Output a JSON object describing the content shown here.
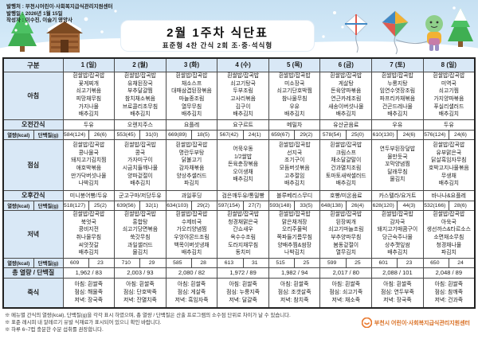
{
  "meta": {
    "publisher": "발행처 : 부천시어린이·사회복지급식관리지원센터",
    "issue_date": "발행일 : 2026년 1월 15일",
    "author": "작성자 : 이수진, 이슬기 영양사"
  },
  "title": {
    "main": "2월 1주차 식단표",
    "sub": "표준형 4찬 간식 2회 조·중·석식형"
  },
  "colors": {
    "header_blue": "#d9e8f6",
    "weekend_red": "#e60012",
    "sky": "#c6e0f2",
    "logo_orange": "#e8762b"
  },
  "table": {
    "corner": "구분",
    "row_labels": {
      "breakfast": "아침",
      "am_snack": "오전간식",
      "energy": "열량(kcal)",
      "protein": "단백질(g)",
      "lunch": "점심",
      "pm_snack": "오후간식",
      "dinner": "저녁",
      "total": "총 열량 / 단백질",
      "porridge": "죽식"
    },
    "columns": [
      {
        "day": "1 (일)",
        "weekend": true,
        "breakfast": [
          "흰쌀밥/잡곡밥",
          "꽃게찌개",
          "쇠고기볶음",
          "피망채무침",
          "가지나물",
          "배추김치"
        ],
        "am_snack": "두유",
        "breakfast_kcal": "584(124)",
        "breakfast_protein": "26(6)",
        "lunch": [
          "흰쌀밥/잡곡밥",
          "콩나물국",
          "돼지고기김치찜",
          "애호박볶음",
          "만가닥버섯나물",
          "나박김치"
        ],
        "pm_snack": "미니붕어빵/두유",
        "lunch_kcal": "518(127)",
        "lunch_protein": "25(2)",
        "dinner": [
          "흰쌀밥/잡곡밥",
          "북엇국",
          "콩비지전",
          "취나물무침",
          "씨앗젓갈",
          "배추김치"
        ],
        "dinner_kcal": "609",
        "dinner_protein": "23",
        "total": "1,962 / 83",
        "porridge": [
          "아침: 흰쌀죽",
          "점심: 해물죽",
          "저녁: 장국죽"
        ]
      },
      {
        "day": "2 (월)",
        "weekend": false,
        "breakfast": [
          "흰쌀밥/잡곡밥",
          "유채된장국",
          "부추달걀찜",
          "참치채소볶음",
          "브로콜리초무침",
          "배추김치"
        ],
        "am_snack": "오렌지주스",
        "breakfast_kcal": "553(45)",
        "breakfast_protein": "31(0)",
        "lunch": [
          "흰쌀밥/잡곡밥",
          "콩국",
          "가자미구이",
          "시금치들깨나물",
          "양파겉절이",
          "배추김치"
        ],
        "pm_snack": "군고구마/저당두유",
        "lunch_kcal": "639(56)",
        "lunch_protein": "32(1)",
        "dinner": [
          "흰쌀밥/잡곡밥",
          "홍합탕",
          "쇠고기당면볶음",
          "쑥갓무침",
          "과일샐러드",
          "물김치"
        ],
        "dinner_kcal": "710",
        "dinner_protein": "29",
        "total": "2,003 / 93",
        "porridge": [
          "아침: 흰쌀죽",
          "점심: 단호박죽",
          "저녁: 잔멸치죽"
        ]
      },
      {
        "day": "3 (화)",
        "weekend": false,
        "breakfast": [
          "흰쌀밥/잡곡밥",
          "채소스프",
          "대패삼겹된장볶음",
          "마늘종조림",
          "열무무침",
          "배추김치"
        ],
        "am_snack": "요플레",
        "breakfast_kcal": "669(89)",
        "breakfast_protein": "18(5)",
        "lunch": [
          "흰쌀밥/잡곡밥",
          "명란두부탕",
          "닭불고기",
          "감자채볶음",
          "양상추샐러드",
          "파김치"
        ],
        "pm_snack": "과일푸딩",
        "lunch_kcal": "634(103)",
        "lunch_protein": "29(2)",
        "dinner": [
          "흰쌀밥/잡곡밥",
          "수제비국",
          "가오리양념찜",
          "우엉아몬드조림",
          "백목이버섯냉채",
          "배추김치"
        ],
        "dinner_kcal": "585",
        "dinner_protein": "28",
        "total": "2,080 / 82",
        "porridge": [
          "아침: 흰쌀죽",
          "점심: 게살죽",
          "저녁: 흑임자죽"
        ]
      },
      {
        "day": "4 (수)",
        "weekend": false,
        "breakfast": [
          "흰쌀밥/잡곡밥",
          "쇠고기탕국",
          "두부조림",
          "고사리볶음",
          "김구이",
          "배추김치"
        ],
        "am_snack": "요구르트",
        "breakfast_kcal": "567(42)",
        "breakfast_protein": "24(1)",
        "lunch": [
          "어묵우동",
          "1/2쌀밥",
          "돈육춘장볶음",
          "오이생채",
          "배추김치"
        ],
        "pm_snack": "검은깨두유/통밀빵",
        "lunch_kcal": "597(154)",
        "lunch_protein": "27(7)",
        "dinner": [
          "흰쌀밥/잡곡밥",
          "청경채맑은국",
          "간쇼새우",
          "옥수수조림",
          "도라지채무침",
          "동치미"
        ],
        "dinner_kcal": "613",
        "dinner_protein": "31",
        "total": "1,972 / 89",
        "porridge": [
          "아침: 흰쌀죽",
          "점심: 누룽지죽",
          "저녁: 달걀죽"
        ]
      },
      {
        "day": "5 (목)",
        "weekend": false,
        "breakfast": [
          "흰쌀밥/잡곡밥",
          "미소장국",
          "쇠고기단호박찜",
          "참나물무침",
          "우유",
          "배추김치"
        ],
        "am_snack": "메밀차",
        "breakfast_kcal": "659(67)",
        "breakfast_protein": "29(2)",
        "lunch": [
          "흰쌀밥/잡곡밥",
          "선지국",
          "조기구이",
          "모듬버섯볶음",
          "고추절임",
          "배추김치"
        ],
        "pm_snack": "블루베리스무디",
        "lunch_kcal": "593(148)",
        "lunch_protein": "33(5)",
        "dinner": [
          "흰쌀밥/잡곡밥",
          "맑은채개장",
          "오리주물럭",
          "쪽파들기름무침",
          "양배추찜&쌈장",
          "나박김치"
        ],
        "dinner_kcal": "515",
        "dinner_protein": "25",
        "total": "1,982 / 94",
        "porridge": [
          "아침: 흰쌀죽",
          "점심: 조갯살죽",
          "저녁: 참치죽"
        ]
      },
      {
        "day": "6 (금)",
        "weekend": false,
        "breakfast": [
          "흰쌀밥/잡곡밥",
          "게살탕",
          "돈육양파볶음",
          "연근카레조림",
          "새송이버섯나물",
          "배추김치"
        ],
        "am_snack": "유산균음료",
        "breakfast_kcal": "578(54)",
        "breakfast_protein": "25(0)",
        "lunch": [
          "흰쌀밥/잡곡밥",
          "크림스프",
          "채소달걀말이",
          "건과멸치조림",
          "토마토새싹샐러드",
          "배추김치"
        ],
        "pm_snack": "호빵/미온음료",
        "lunch_kcal": "648(138)",
        "lunch_protein": "26(4)",
        "dinner": [
          "흰쌀밥/잡곡밥",
          "된장찌개",
          "쇠고기마늘조림",
          "부추양파무침",
          "봄동겉절이",
          "열무김치"
        ],
        "dinner_kcal": "599",
        "dinner_protein": "25",
        "total": "2,017 / 80",
        "porridge": [
          "아침: 흰쌀죽",
          "점심: 쇠고기죽",
          "저녁: 채소죽"
        ]
      },
      {
        "day": "7 (토)",
        "weekend": false,
        "breakfast": [
          "흰쌀밥/잡곡밥",
          "누룽지탕",
          "임연수엿장조림",
          "파프리카채볶음",
          "건곤드레나물",
          "배추김치"
        ],
        "am_snack": "우유",
        "breakfast_kcal": "610(130)",
        "breakfast_protein": "24(6)",
        "lunch": [
          "연두부된장덮밥",
          "물만둣국",
          "꼬막양념찜",
          "달래무침",
          "물김치"
        ],
        "pm_snack": "카스텔라/요거트",
        "lunch_kcal": "628(120)",
        "lunch_protein": "44(3)",
        "dinner": [
          "흰쌀밥/잡곡밥",
          "감자국",
          "돼지고기매콤구이",
          "당근숙주나물",
          "상추깻잎쌈",
          "배추김치"
        ],
        "dinner_kcal": "601",
        "dinner_protein": "23",
        "total": "2,088 / 101",
        "porridge": [
          "아침: 흰쌀죽",
          "점심: 연두부죽",
          "저녁: 장국죽"
        ]
      },
      {
        "day": "8 (일)",
        "weekend": true,
        "breakfast": [
          "흰쌀밥/잡곡밥",
          "미역국",
          "쇠고기찜",
          "가지양파볶음",
          "푸실리샐러드",
          "배추김치"
        ],
        "am_snack": "두유",
        "breakfast_kcal": "576(124)",
        "breakfast_protein": "24(6)",
        "lunch": [
          "흰쌀밥/잡곡밥",
          "유부맑은국",
          "닭살흑임자무침",
          "호박고지나물볶음",
          "무생채",
          "배추김치"
        ],
        "pm_snack": "바나나&요플레",
        "lunch_kcal": "532(166)",
        "lunch_protein": "28(6)",
        "dinner": [
          "흰쌀밥/잡곡밥",
          "아욱국",
          "생선까스&타르소스",
          "소면채소무침",
          "청경채나물",
          "파김치"
        ],
        "dinner_kcal": "650",
        "dinner_protein": "24",
        "total": "2,048 / 89",
        "porridge": [
          "아침: 흰쌀죽",
          "점심: 참깨죽",
          "저녁: 건과죽"
        ]
      }
    ]
  },
  "footnotes": [
    "※ 메뉴별 간식의 열량(kcal), 단백질(g)을 각각 표시 하였으며, 총 열량 / 단백질은 산출 프로그램의 소수점 단위로 차이가 날 수 있습니다.",
    "※ 표준 레시피 내 알레르기 유발 식재료가 표시되어 있으니 확인 바랍니다.",
    "※ 하루 6~7컵 충분한 수분 섭취를 권장합니다."
  ],
  "footer": {
    "org": "부천시 어린이·사회복지급식관리지원센터"
  }
}
